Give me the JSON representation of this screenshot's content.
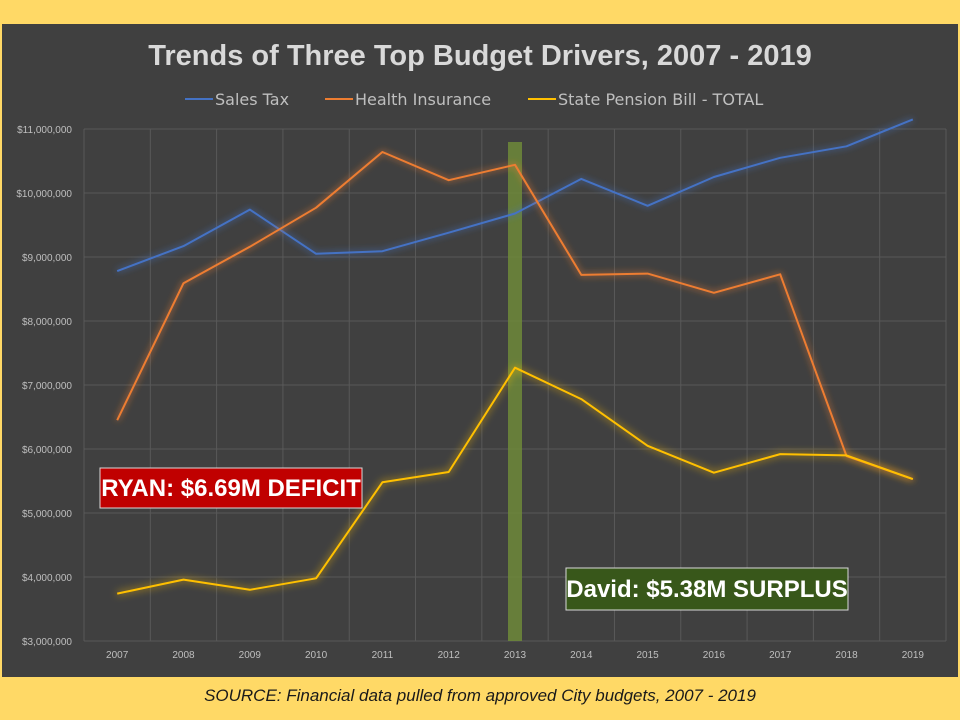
{
  "chart_data": {
    "type": "line",
    "title": "Trends of Three Top Budget Drivers, 2007 - 2019",
    "xlabel": "",
    "ylabel": "",
    "categories": [
      "2007",
      "2008",
      "2009",
      "2010",
      "2011",
      "2012",
      "2013",
      "2014",
      "2015",
      "2016",
      "2017",
      "2018",
      "2019"
    ],
    "y_ticks": [
      "$3,000,000",
      "$4,000,000",
      "$5,000,000",
      "$6,000,000",
      "$7,000,000",
      "$8,000,000",
      "$9,000,000",
      "$10,000,000",
      "$11,000,000"
    ],
    "ylim": [
      3000000,
      11000000
    ],
    "grid": true,
    "legend_position": "top",
    "series": [
      {
        "name": "Sales Tax",
        "color": "#4472c4",
        "values": [
          8780000,
          9170000,
          9740000,
          9050000,
          9090000,
          9380000,
          9680000,
          10220000,
          9800000,
          10250000,
          10550000,
          10730000,
          11150000
        ]
      },
      {
        "name": "Health Insurance",
        "color": "#ed7d31",
        "values": [
          6450000,
          8590000,
          9160000,
          9770000,
          10640000,
          10200000,
          10440000,
          8720000,
          8740000,
          8440000,
          8730000,
          5890000,
          5530000
        ]
      },
      {
        "name": "State Pension Bill - TOTAL",
        "color": "#ffc000",
        "values": [
          3740000,
          3960000,
          3800000,
          3980000,
          5480000,
          5640000,
          7270000,
          6780000,
          6050000,
          5630000,
          5920000,
          5900000,
          5530000
        ]
      }
    ],
    "highlight": {
      "category": "2013",
      "color": "#6e8a3a"
    },
    "annotations": [
      {
        "text": "RYAN: $6.69M DEFICIT",
        "color": "#c00000"
      },
      {
        "text": "David: $5.38M SURPLUS",
        "color": "#38571a"
      }
    ]
  },
  "source_text": "SOURCE: Financial data pulled from approved City budgets, 2007 - 2019"
}
